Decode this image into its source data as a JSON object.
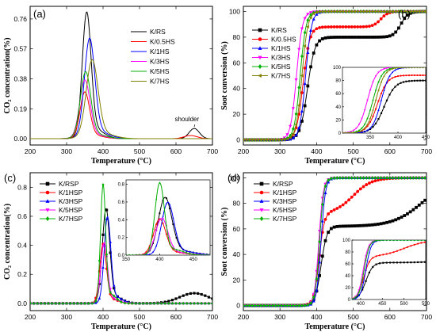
{
  "colors": {
    "black": "#000000",
    "red": "#ff0000",
    "blue": "#0000ff",
    "magenta": "#ff00ff",
    "green": "#00b000",
    "olive": "#808000"
  },
  "chart_data": [
    {
      "panel_label": "(a)",
      "type": "line",
      "xlabel": "Temperature (°C)",
      "ylabel": "CO₂ concentration(%)",
      "xlim": [
        200,
        700
      ],
      "ylim": [
        -0.04,
        0.84
      ],
      "xticks": [
        200,
        300,
        400,
        500,
        600,
        700
      ],
      "yticks": [
        0.0,
        0.19,
        0.38,
        0.57,
        0.76
      ],
      "ytick_labels": [
        "0.00",
        "0.19",
        "0.38",
        "0.57",
        "0.76"
      ],
      "legend_position": "top-right",
      "annotations": [
        {
          "text": "shoulder",
          "x": 630,
          "y": 0.11
        }
      ],
      "series": [
        {
          "name": "K/RS",
          "color": "#000000",
          "peak": 355,
          "height": 0.76,
          "width": 12,
          "extra": [
            [
              650,
              0.065,
              14
            ]
          ]
        },
        {
          "name": "K/0.5HS",
          "color": "#ff0000",
          "peak": 350,
          "height": 0.28,
          "width": 13,
          "extra": [
            [
              640,
              0.02,
              18
            ]
          ]
        },
        {
          "name": "K/1HS",
          "color": "#0000ff",
          "peak": 363,
          "height": 0.6,
          "width": 14
        },
        {
          "name": "K/3HS",
          "color": "#ff00ff",
          "peak": 350,
          "height": 0.35,
          "width": 14
        },
        {
          "name": "K/5HS",
          "color": "#00b000",
          "peak": 352,
          "height": 0.4,
          "width": 14
        },
        {
          "name": "K/7HS",
          "color": "#808000",
          "peak": 370,
          "height": 0.47,
          "width": 16
        }
      ]
    },
    {
      "panel_label": "(b)",
      "type": "line",
      "xlabel": "Temperature (°C)",
      "ylabel": "Soot conversion (%)",
      "xlim": [
        200,
        700
      ],
      "ylim": [
        -4,
        104
      ],
      "xticks": [
        200,
        300,
        400,
        500,
        600,
        700
      ],
      "yticks": [
        0,
        20,
        40,
        60,
        80,
        100
      ],
      "legend_position": "left",
      "inset": {
        "xlim": [
          300,
          450
        ],
        "ylim": [
          0,
          100
        ],
        "xticks": [
          350,
          400,
          450
        ],
        "yticks": [
          0,
          20,
          40,
          60,
          80,
          100
        ]
      },
      "series": [
        {
          "name": "K/RS",
          "color": "#000000",
          "marker": "square",
          "center": 375,
          "scale": 10,
          "plateau": 80,
          "late_center": 630,
          "late_scale": 10
        },
        {
          "name": "K/0.5HS",
          "color": "#ff0000",
          "marker": "circle",
          "center": 363,
          "scale": 9,
          "plateau": 88,
          "late_center": 575,
          "late_scale": 10
        },
        {
          "name": "K/1HS",
          "color": "#0000ff",
          "marker": "triangle-up",
          "center": 370,
          "scale": 8,
          "plateau": 100
        },
        {
          "name": "K/3HS",
          "color": "#ff00ff",
          "marker": "triangle-down",
          "center": 345,
          "scale": 8,
          "plateau": 100
        },
        {
          "name": "K/5HS",
          "color": "#00b000",
          "marker": "diamond",
          "center": 355,
          "scale": 8,
          "plateau": 100
        },
        {
          "name": "K/7HS",
          "color": "#808000",
          "marker": "triangle-left",
          "center": 360,
          "scale": 8,
          "plateau": 100
        }
      ]
    },
    {
      "panel_label": "(c)",
      "type": "line",
      "xlabel": "Temperature (°C)",
      "ylabel": "CO₂ concentration(%)",
      "xlim": [
        200,
        700
      ],
      "ylim": [
        -0.05,
        0.9
      ],
      "xticks": [
        200,
        300,
        400,
        500,
        600,
        700
      ],
      "yticks": [
        0.0,
        0.2,
        0.4,
        0.6,
        0.8
      ],
      "ytick_labels": [
        "0.0",
        "0.2",
        "0.4",
        "0.6",
        "0.8"
      ],
      "legend_position": "top-left",
      "inset": {
        "xlim": [
          350,
          475
        ],
        "ylim": [
          0,
          0.85
        ],
        "xticks": [
          350,
          400,
          450
        ],
        "yticks": [
          0.0,
          0.2,
          0.4,
          0.6,
          0.8
        ]
      },
      "series": [
        {
          "name": "K/RSP",
          "color": "#000000",
          "marker": "square",
          "peak": 408,
          "height": 0.62,
          "width": 10,
          "extra": [
            [
              650,
              0.07,
              40
            ]
          ]
        },
        {
          "name": "K/1HSP",
          "color": "#ff0000",
          "marker": "circle",
          "peak": 400,
          "height": 0.39,
          "width": 9
        },
        {
          "name": "K/3HSP",
          "color": "#0000ff",
          "marker": "triangle-up",
          "peak": 412,
          "height": 0.57,
          "width": 9
        },
        {
          "name": "K/5HSP",
          "color": "#ff00ff",
          "marker": "triangle-down",
          "peak": 403,
          "height": 0.4,
          "width": 9
        },
        {
          "name": "K/7HSP",
          "color": "#00b000",
          "marker": "diamond",
          "peak": 400,
          "height": 0.79,
          "width": 7
        }
      ]
    },
    {
      "panel_label": "(d)",
      "type": "line",
      "xlabel": "Temperature (°C)",
      "ylabel": "Soot conversion (%)",
      "xlim": [
        200,
        700
      ],
      "ylim": [
        -4,
        104
      ],
      "xticks": [
        200,
        300,
        400,
        500,
        600,
        700
      ],
      "yticks": [
        0,
        20,
        40,
        60,
        80,
        100
      ],
      "legend_position": "top-left",
      "inset": {
        "xlim": [
          380,
          550
        ],
        "ylim": [
          0,
          100
        ],
        "xticks": [
          400,
          450,
          500,
          550
        ],
        "yticks": [
          0,
          20,
          40,
          60,
          80,
          100
        ]
      },
      "series": [
        {
          "name": "K/RSP",
          "color": "#000000",
          "marker": "square",
          "center": 412,
          "scale": 8,
          "plateau": 62,
          "late_center": 690,
          "late_scale": 40
        },
        {
          "name": "K/1HSP",
          "color": "#ff0000",
          "marker": "circle",
          "center": 407,
          "scale": 7,
          "plateau": 72,
          "late_center": 500,
          "late_scale": 25
        },
        {
          "name": "K/3HSP",
          "color": "#0000ff",
          "marker": "triangle-up",
          "center": 412,
          "scale": 6,
          "plateau": 100
        },
        {
          "name": "K/5HSP",
          "color": "#ff00ff",
          "marker": "triangle-down",
          "center": 406,
          "scale": 6,
          "plateau": 100
        },
        {
          "name": "K/7HSP",
          "color": "#00b000",
          "marker": "diamond",
          "center": 408,
          "scale": 6,
          "plateau": 100
        }
      ]
    }
  ]
}
